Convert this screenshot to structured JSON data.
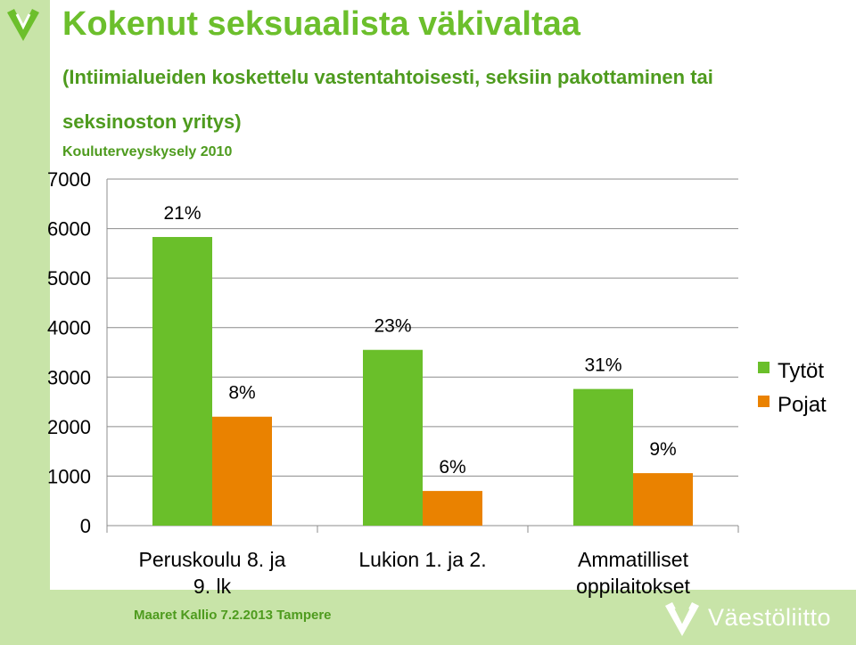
{
  "header": {
    "title": "Kokenut seksuaalista väkivaltaa",
    "subtitle": "(Intiimialueiden koskettelu vastentahtoisesti, seksiin pakottaminen tai seksinoston yritys)",
    "source": "Kouluterveyskysely 2010"
  },
  "footer": {
    "text": "Maaret Kallio 7.2.2013 Tampere",
    "brand": "Väestöliitto"
  },
  "icons": {
    "top_logo": "shield-v-logo-icon",
    "brand_logo": "shield-v-logo-icon"
  },
  "colors": {
    "title": "#6cbf2c",
    "subtitle": "#4e9b1e",
    "band": "#c8e4a8",
    "tytot": "#6abf2a",
    "pojat": "#ea8200"
  },
  "chart_data": {
    "type": "bar",
    "categories": [
      "Peruskoulu 8. ja 9. lk",
      "Lukion 1. ja 2.",
      "Ammatilliset oppilaitokset"
    ],
    "series": [
      {
        "name": "Tytöt",
        "values": [
          5830,
          3550,
          2760
        ],
        "labels": [
          "21%",
          "23%",
          "31%"
        ],
        "color": "#6abf2a"
      },
      {
        "name": "Pojat",
        "values": [
          2200,
          700,
          1060
        ],
        "labels": [
          "8%",
          "6%",
          "9%"
        ],
        "color": "#ea8200"
      }
    ],
    "ylim": [
      0,
      7000
    ],
    "yticks": [
      "0",
      "1000",
      "2000",
      "3000",
      "4000",
      "5000",
      "6000",
      "7000"
    ],
    "grid": true,
    "legend": "right"
  }
}
